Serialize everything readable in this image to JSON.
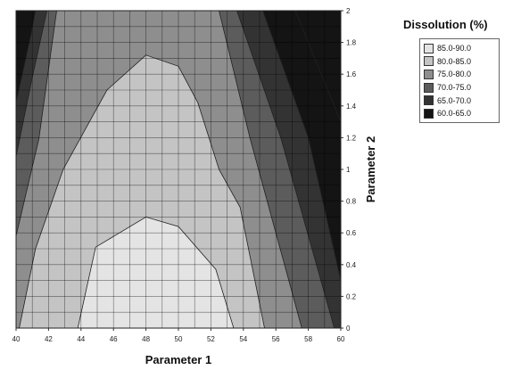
{
  "chart_data": {
    "type": "contour",
    "xlabel": "Parameter 1",
    "ylabel": "Parameter 2",
    "xlim": [
      40,
      60
    ],
    "ylim": [
      0,
      2
    ],
    "x_ticks": [
      "40",
      "42",
      "44",
      "46",
      "48",
      "50",
      "52",
      "54",
      "56",
      "58",
      "60"
    ],
    "y_ticks": [
      "0",
      "0.2",
      "0.4",
      "0.6",
      "0.8",
      "1",
      "1.2",
      "1.4",
      "1.6",
      "1.8",
      "2"
    ],
    "grid": true,
    "legend": {
      "title": "Dissolution (%)",
      "position": "top-right",
      "entries": [
        {
          "label": "85.0-90.0",
          "color": "#e4e4e4"
        },
        {
          "label": "80.0-85.0",
          "color": "#c4c4c4"
        },
        {
          "label": "75.0-80.0",
          "color": "#8e8e8e"
        },
        {
          "label": "70.0-75.0",
          "color": "#5c5c5c"
        },
        {
          "label": "65.0-70.0",
          "color": "#333333"
        },
        {
          "label": "60.0-65.0",
          "color": "#141414"
        }
      ]
    },
    "contour_levels": [
      {
        "band": "85.0-90.0",
        "boundary": [
          [
            43.8,
            0
          ],
          [
            44.9,
            0.51
          ],
          [
            48.0,
            0.7
          ],
          [
            50.0,
            0.64
          ],
          [
            52.3,
            0.37
          ],
          [
            53.4,
            0
          ]
        ]
      },
      {
        "band": "80.0-85.0",
        "boundary": [
          [
            40.2,
            0
          ],
          [
            41.2,
            0.5
          ],
          [
            42.9,
            1.0
          ],
          [
            45.6,
            1.5
          ],
          [
            48.0,
            1.72
          ],
          [
            50.0,
            1.65
          ],
          [
            51.2,
            1.42
          ],
          [
            52.5,
            1.0
          ],
          [
            53.8,
            0.76
          ],
          [
            55.3,
            0
          ]
        ]
      },
      {
        "band": "75.0-80.0",
        "boundary": [
          [
            40.0,
            0.58
          ],
          [
            41.4,
            1.19
          ],
          [
            42.5,
            2.0
          ],
          [
            52.5,
            2.0
          ],
          [
            54.4,
            1.2
          ],
          [
            57.6,
            0
          ]
        ]
      },
      {
        "band": "70.0-75.0",
        "boundary": [
          [
            40.0,
            1.08
          ],
          [
            41.0,
            1.58
          ],
          [
            41.9,
            2.0
          ],
          [
            53.6,
            2.0
          ],
          [
            56.3,
            1.2
          ],
          [
            59.6,
            0
          ]
        ]
      },
      {
        "band": "65.0-70.0",
        "boundary": [
          [
            40.0,
            1.42
          ],
          [
            40.9,
            1.84
          ],
          [
            41.2,
            2.0
          ],
          [
            55.2,
            2.0
          ],
          [
            58.0,
            1.2
          ],
          [
            60.0,
            0.3
          ]
        ]
      },
      {
        "band": "60.0-65.0",
        "boundary": [
          [
            40.0,
            1.78
          ],
          [
            40.3,
            2.0
          ],
          [
            57.2,
            2.0
          ],
          [
            60.0,
            1.3
          ]
        ]
      }
    ]
  }
}
